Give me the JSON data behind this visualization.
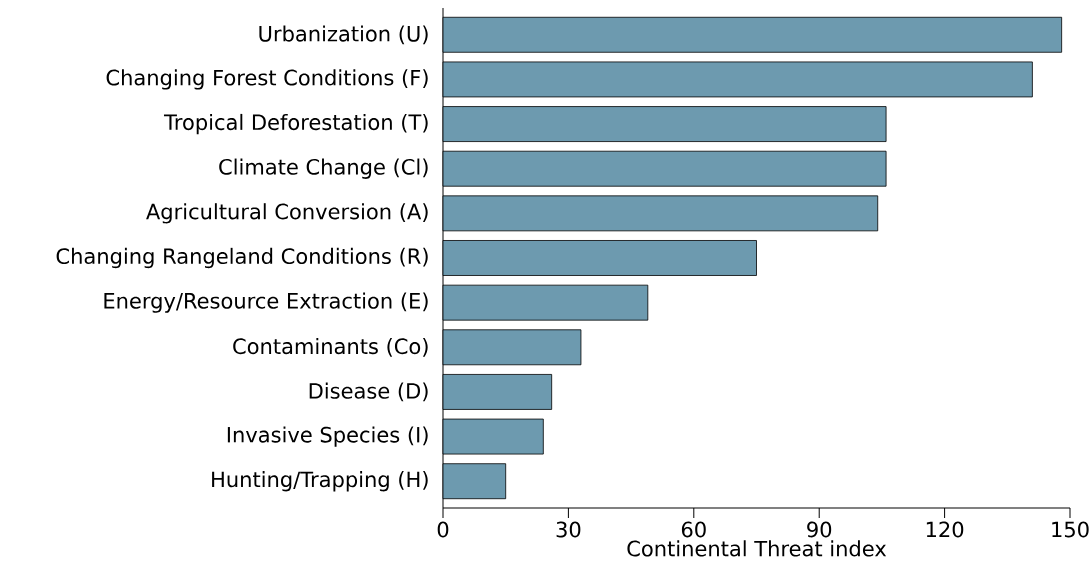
{
  "chart_data": {
    "type": "bar",
    "orientation": "horizontal",
    "xlabel": "Continental Threat index",
    "categories": [
      "Urbanization (U)",
      "Changing Forest Conditions (F)",
      "Tropical Deforestation (T)",
      "Climate Change (Cl)",
      "Agricultural Conversion (A)",
      "Changing Rangeland Conditions (R)",
      "Energy/Resource Extraction (E)",
      "Contaminants (Co)",
      "Disease (D)",
      "Invasive Species (I)",
      "Hunting/Trapping (H)"
    ],
    "values": [
      148,
      141,
      106,
      106,
      104,
      75,
      49,
      33,
      26,
      24,
      15
    ],
    "color": "#6d9aaf",
    "xlim": [
      0,
      150
    ],
    "xticks": [
      0,
      30,
      60,
      90,
      120,
      150
    ],
    "grid": false
  }
}
